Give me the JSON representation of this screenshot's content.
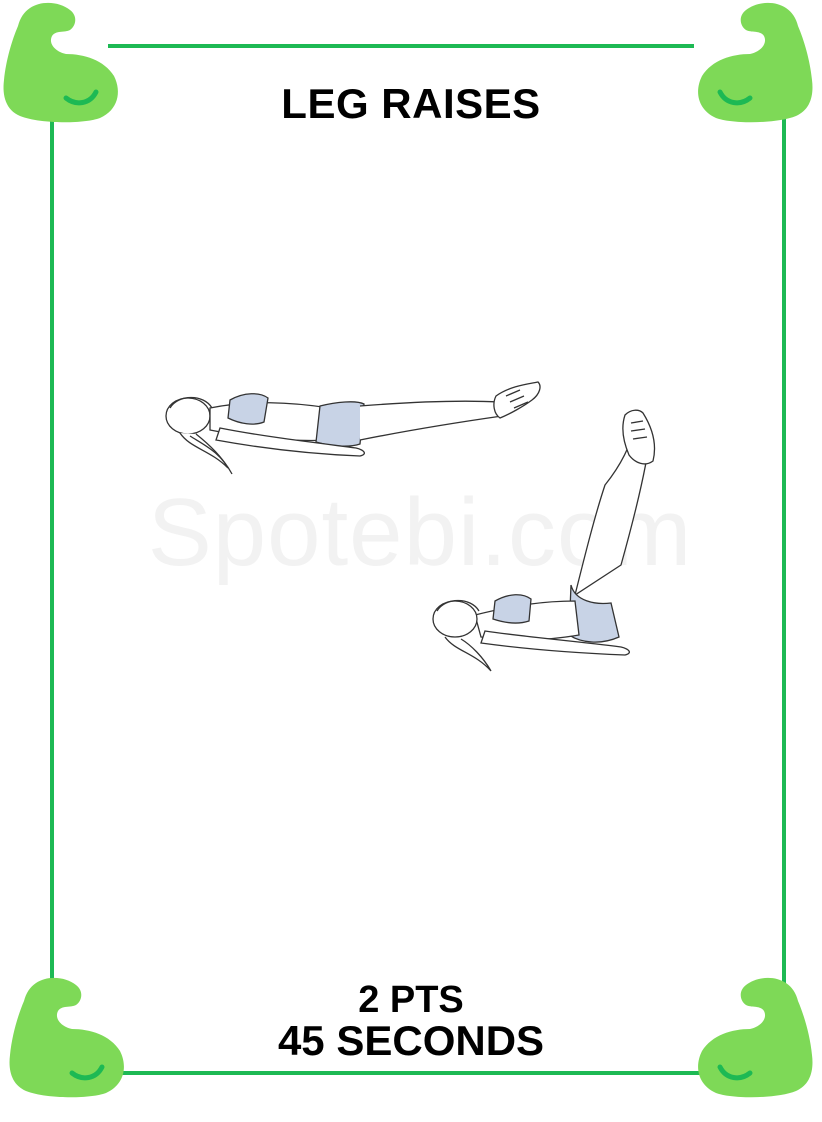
{
  "card": {
    "title": "LEG RAISES",
    "points": "2 PTS",
    "duration": "45 SECONDS",
    "watermark": "Spotebi.com"
  },
  "icons": {
    "corner": "flexed-biceps-icon",
    "illustration_1": "lying-legs-flat-figure",
    "illustration_2": "lying-legs-raised-figure"
  },
  "colors": {
    "frame": "#1db954",
    "icon_fill": "#7ed957",
    "icon_accent": "#1db954",
    "clothing": "#c8d3e6"
  }
}
